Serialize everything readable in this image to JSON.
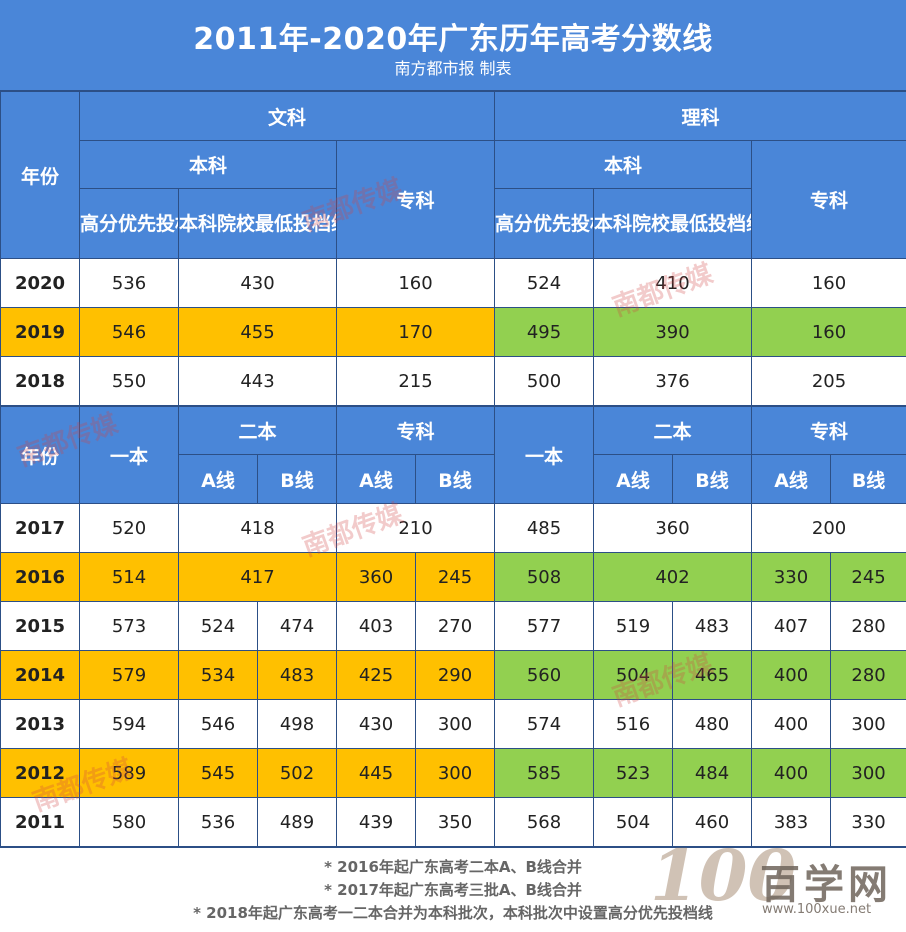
{
  "header": {
    "title": "2011年-2020年广东历年高考分数线",
    "subtitle": "南方都市报 制表"
  },
  "table1": {
    "year_label": "年份",
    "wenke": "文科",
    "like": "理科",
    "benke": "本科",
    "zhuanke": "专科",
    "gaofen": "高分优先投档线",
    "benke_min": "本科院校最低投档线",
    "rows": [
      {
        "year": "2020",
        "w1": "536",
        "w2": "430",
        "w3": "160",
        "l1": "524",
        "l2": "410",
        "l3": "160"
      },
      {
        "year": "2019",
        "w1": "546",
        "w2": "455",
        "w3": "170",
        "l1": "495",
        "l2": "390",
        "l3": "160"
      },
      {
        "year": "2018",
        "w1": "550",
        "w2": "443",
        "w3": "215",
        "l1": "500",
        "l2": "376",
        "l3": "205"
      }
    ]
  },
  "table2": {
    "year_label": "年份",
    "yiben": "一本",
    "erben": "二本",
    "zhuanke": "专科",
    "a_line": "A线",
    "b_line": "B线",
    "merged_rows": [
      {
        "year": "2017",
        "w1": "520",
        "w2": "418",
        "w3": "210",
        "l1": "485",
        "l2": "360",
        "l3": "200"
      }
    ],
    "row_2016": {
      "year": "2016",
      "w1": "514",
      "w2": "417",
      "w3a": "360",
      "w3b": "245",
      "l1": "508",
      "l2": "402",
      "l3a": "330",
      "l3b": "245"
    },
    "rows": [
      {
        "year": "2015",
        "w1": "573",
        "w2a": "524",
        "w2b": "474",
        "w3a": "403",
        "w3b": "270",
        "l1": "577",
        "l2a": "519",
        "l2b": "483",
        "l3a": "407",
        "l3b": "280"
      },
      {
        "year": "2014",
        "w1": "579",
        "w2a": "534",
        "w2b": "483",
        "w3a": "425",
        "w3b": "290",
        "l1": "560",
        "l2a": "504",
        "l2b": "465",
        "l3a": "400",
        "l3b": "280"
      },
      {
        "year": "2013",
        "w1": "594",
        "w2a": "546",
        "w2b": "498",
        "w3a": "430",
        "w3b": "300",
        "l1": "574",
        "l2a": "516",
        "l2b": "480",
        "l3a": "400",
        "l3b": "300"
      },
      {
        "year": "2012",
        "w1": "589",
        "w2a": "545",
        "w2b": "502",
        "w3a": "445",
        "w3b": "300",
        "l1": "585",
        "l2a": "523",
        "l2b": "484",
        "l3a": "400",
        "l3b": "300"
      },
      {
        "year": "2011",
        "w1": "580",
        "w2a": "536",
        "w2b": "489",
        "w3a": "439",
        "w3b": "350",
        "l1": "568",
        "l2a": "504",
        "l2b": "460",
        "l3a": "383",
        "l3b": "330"
      }
    ]
  },
  "footer": {
    "notes": [
      "* 2016年起广东高考二本A、B线合并",
      "* 2017年起广东高考三批A、B线合并",
      "* 2018年起广东高考一二本合并为本科批次，本科批次中设置高分优先投档线"
    ]
  },
  "watermark": {
    "nandu": "南都传媒",
    "nfdsb": "南方都市报",
    "logo_num": "100",
    "logo_text": "百学网",
    "logo_url": "www.100xue.net"
  },
  "colors": {
    "header_blue": "#4a86d8",
    "border_blue": "#2c4f86",
    "wenke_highlight": "#ffc000",
    "like_highlight": "#92d050"
  }
}
